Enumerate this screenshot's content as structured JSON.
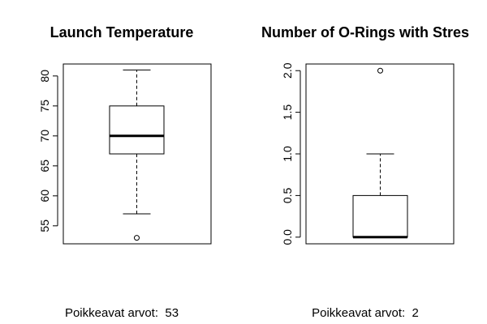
{
  "chart_data": [
    {
      "type": "box",
      "title": "Launch Temperature",
      "footer": {
        "label": "Poikkeavat arvot:",
        "value": "53"
      },
      "yticks": [
        55,
        60,
        65,
        70,
        75,
        80
      ],
      "yticklabels": [
        "55",
        "60",
        "65",
        "70",
        "75",
        "80"
      ],
      "ylim": [
        52,
        82
      ],
      "box": {
        "min": 57,
        "q1": 67,
        "median": 70,
        "q3": 75,
        "max": 81
      },
      "outliers": [
        53
      ]
    },
    {
      "type": "box",
      "title": "Number of O-Rings with Stres",
      "footer": {
        "label": "Poikkeavat arvot:",
        "value": "2"
      },
      "yticks": [
        0.0,
        0.5,
        1.0,
        1.5,
        2.0
      ],
      "yticklabels": [
        "0.0",
        "0.5",
        "1.0",
        "1.5",
        "2.0"
      ],
      "ylim": [
        -0.08,
        2.08
      ],
      "box": {
        "min": 0,
        "q1": 0,
        "median": 0,
        "q3": 0.5,
        "max": 1.0
      },
      "outliers": [
        2.0
      ]
    }
  ]
}
